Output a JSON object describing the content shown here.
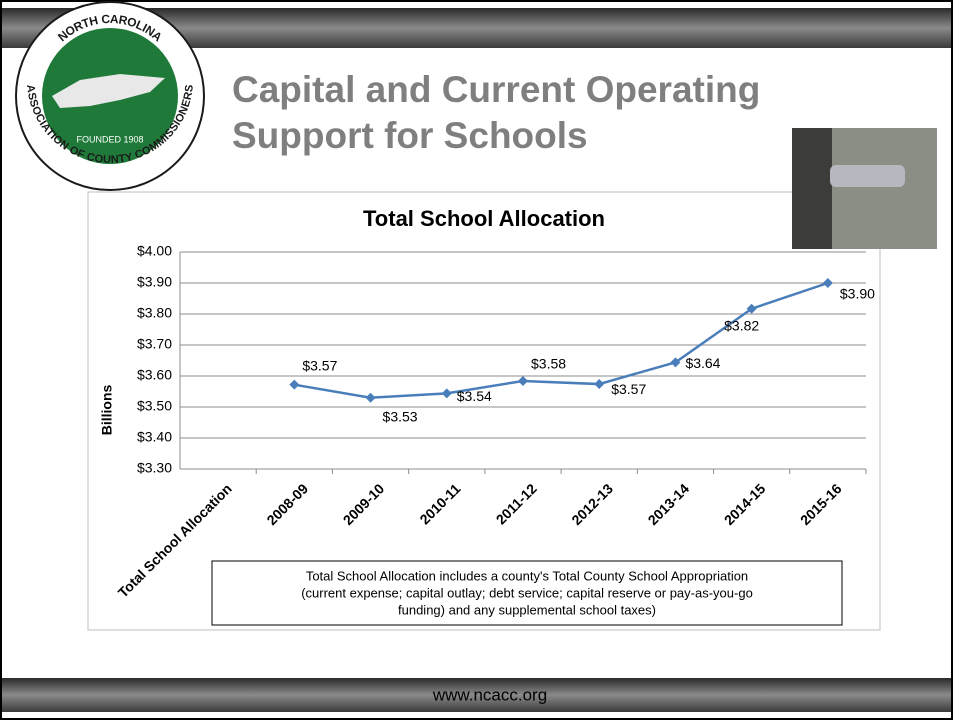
{
  "slide": {
    "title_lines": [
      "Capital and Current Operating",
      "Support for Schools"
    ],
    "footer": "www.ncacc.org",
    "logo": {
      "top": "NORTH CAROLINA",
      "bottom": "ASSOCIATION OF COUNTY COMMISSIONERS",
      "founded": "FOUNDED 1908"
    }
  },
  "chart_data": {
    "type": "line",
    "title": "Total School Allocation",
    "y_label": "Billions",
    "categories": [
      "Total School Allocation",
      "2008-09",
      "2009-10",
      "2010-11",
      "2011-12",
      "2012-13",
      "2013-14",
      "2014-15",
      "2015-16"
    ],
    "series": [
      {
        "name": "Total School Allocation",
        "color": "#4a7ebb",
        "values": [
          null,
          3.572,
          3.53,
          3.544,
          3.584,
          3.574,
          3.644,
          3.817,
          3.9
        ],
        "value_labels": [
          null,
          "$3.57",
          "$3.53",
          "$3.54",
          "$3.58",
          "$3.57",
          "$3.64",
          "$3.82",
          "$3.90"
        ]
      }
    ],
    "ylim": [
      3.3,
      4.0
    ],
    "yticks": [
      {
        "value": 3.3,
        "label": "$3.30"
      },
      {
        "value": 3.4,
        "label": "$3.40"
      },
      {
        "value": 3.5,
        "label": "$3.50"
      },
      {
        "value": 3.6,
        "label": "$3.60"
      },
      {
        "value": 3.7,
        "label": "$3.70"
      },
      {
        "value": 3.8,
        "label": "$3.80"
      },
      {
        "value": 3.9,
        "label": "$3.90"
      },
      {
        "value": 4.0,
        "label": "$4.00"
      }
    ],
    "grid": true,
    "note": [
      "Total School Allocation includes a county's Total County School Appropriation",
      "(current expense; capital outlay; debt service; capital reserve or pay-as-you-go",
      "funding) and any supplemental school taxes)"
    ]
  }
}
